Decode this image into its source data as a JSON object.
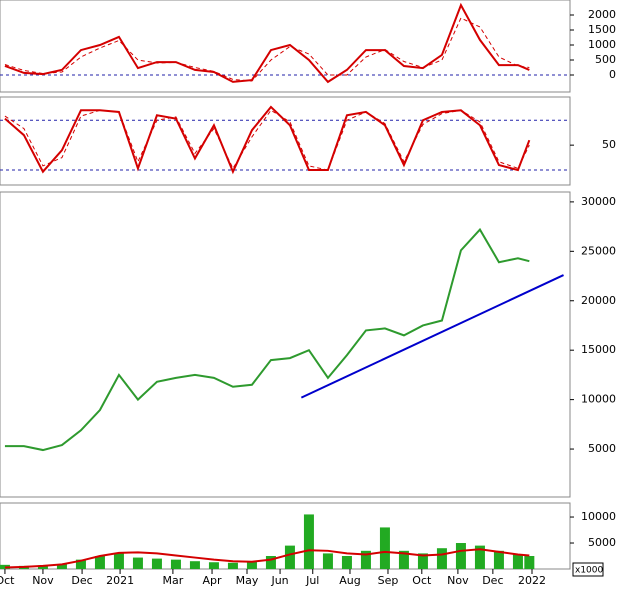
{
  "chart_data": {
    "type": "multi-panel",
    "x": [
      0,
      0.5,
      1,
      1.5,
      2,
      2.5,
      3,
      3.5,
      4,
      4.5,
      5,
      5.5,
      6,
      6.5,
      7,
      7.5,
      8,
      8.5,
      9,
      9.5,
      10,
      10.5,
      11,
      11.5,
      12,
      12.5,
      13,
      13.5,
      13.8
    ],
    "xlim": [
      -0.13,
      14.87
    ],
    "xticks": [
      {
        "value": 0,
        "label": "Oct"
      },
      {
        "value": 1,
        "label": "Nov"
      },
      {
        "value": 2.03,
        "label": "Dec"
      },
      {
        "value": 3.03,
        "label": "2021"
      },
      {
        "value": 4.42,
        "label": "Mar"
      },
      {
        "value": 5.45,
        "label": "Apr"
      },
      {
        "value": 6.37,
        "label": "May"
      },
      {
        "value": 7.24,
        "label": "Jun"
      },
      {
        "value": 8.1,
        "label": "Jul"
      },
      {
        "value": 9.08,
        "label": "Aug"
      },
      {
        "value": 10.08,
        "label": "Sep"
      },
      {
        "value": 10.97,
        "label": "Oct"
      },
      {
        "value": 11.92,
        "label": "Nov"
      },
      {
        "value": 12.84,
        "label": "Dec"
      },
      {
        "value": 13.87,
        "label": "2022"
      }
    ],
    "panels": [
      {
        "type": "line",
        "ylim": [
          -567,
          2500
        ],
        "yticks": [
          0,
          500,
          1000,
          1500,
          2000
        ],
        "ref_lines": [
          0
        ],
        "series": [
          {
            "color": "#d40000",
            "style": "solid",
            "values": [
              300,
              70,
              30,
              170,
              830,
              1000,
              1270,
              230,
              430,
              430,
              170,
              100,
              -230,
              -170,
              830,
              1000,
              500,
              -230,
              170,
              830,
              830,
              300,
              230,
              670,
              2330,
              1170,
              330,
              330,
              170
            ]
          },
          {
            "color": "#d40000",
            "style": "dashed",
            "values": [
              350,
              150,
              50,
              100,
              600,
              900,
              1150,
              500,
              400,
              420,
              250,
              120,
              -150,
              -200,
              500,
              950,
              700,
              0,
              0,
              600,
              850,
              450,
              250,
              500,
              1900,
              1600,
              600,
              300,
              250
            ]
          }
        ]
      },
      {
        "type": "line",
        "ylim": [
          2,
          108
        ],
        "yticks": [
          50
        ],
        "ref_lines": [
          20,
          80
        ],
        "series": [
          {
            "color": "#d40000",
            "style": "solid",
            "values": [
              82,
              62,
              18,
              44,
              92,
              92,
              90,
              22,
              86,
              82,
              34,
              74,
              18,
              68,
              96,
              74,
              20,
              20,
              86,
              90,
              74,
              26,
              80,
              90,
              92,
              74,
              26,
              20,
              56
            ]
          },
          {
            "color": "#d40000",
            "style": "dashed",
            "values": [
              85,
              70,
              25,
              35,
              85,
              92,
              90,
              30,
              80,
              84,
              40,
              70,
              22,
              60,
              92,
              78,
              25,
              20,
              80,
              90,
              76,
              30,
              75,
              88,
              92,
              78,
              30,
              22,
              50
            ]
          }
        ]
      },
      {
        "type": "line",
        "ylim": [
          150,
          31000
        ],
        "yticks": [
          5000,
          10000,
          15000,
          20000,
          25000,
          30000
        ],
        "series": [
          {
            "color": "#2e9a2e",
            "style": "solid",
            "values": [
              5300,
              5300,
              4900,
              5400,
              6900,
              8950,
              12500,
              10000,
              11800,
              12200,
              12500,
              12200,
              11300,
              11500,
              14000,
              14200,
              15000,
              12200,
              14500,
              17000,
              17200,
              16500,
              17500,
              18000,
              25100,
              27200,
              23900,
              24300,
              24000
            ]
          },
          {
            "color": "#0000cc",
            "style": "trend",
            "x": [
              7.8,
              14.7
            ],
            "values": [
              10200,
              22600
            ]
          }
        ]
      },
      {
        "type": "bar",
        "ylim": [
          0,
          12700
        ],
        "yticks": [
          5000,
          10000
        ],
        "unit_label": "x1000",
        "series": [
          {
            "color": "#22aa22",
            "style": "bar",
            "values": [
              800,
              600,
              700,
              900,
              1800,
              2500,
              3000,
              2200,
              2000,
              1800,
              1500,
              1300,
              1200,
              1500,
              2500,
              4500,
              10500,
              3000,
              2500,
              3500,
              8000,
              3500,
              3000,
              4000,
              5000,
              4500,
              3500,
              2800,
              2500
            ]
          },
          {
            "color": "#d40000",
            "style": "solid",
            "values": [
              300,
              400,
              600,
              900,
              1600,
              2500,
              3100,
              3200,
              3000,
              2600,
              2200,
              1800,
              1500,
              1400,
              1800,
              2800,
              3600,
              3500,
              3000,
              2800,
              3300,
              3000,
              2600,
              2800,
              3500,
              3800,
              3300,
              2800,
              2600
            ]
          }
        ]
      }
    ]
  }
}
